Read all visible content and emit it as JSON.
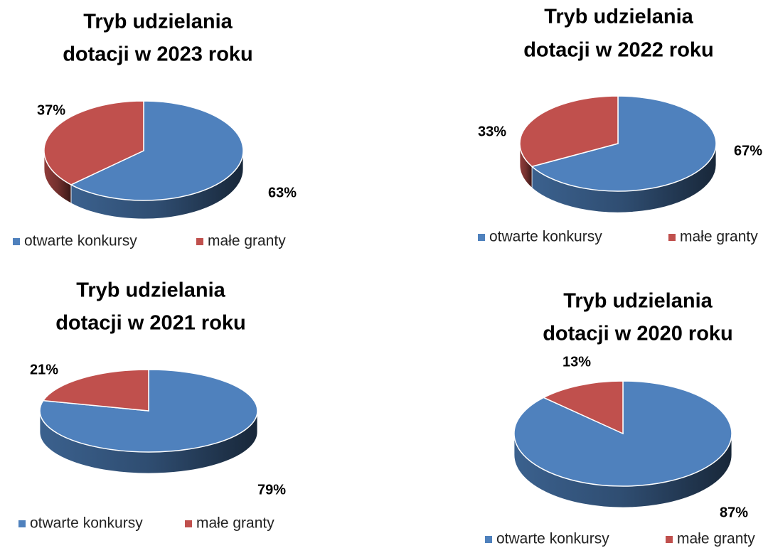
{
  "chart_data": [
    {
      "type": "pie",
      "title": [
        "Tryb udzielania",
        "dotacji w 2023 roku"
      ],
      "categories": [
        "otwarte konkursy",
        "małe granty"
      ],
      "values": [
        63,
        37
      ],
      "value_labels": [
        "63%",
        "37%"
      ],
      "colors": [
        "#4f81bd",
        "#c0504d"
      ]
    },
    {
      "type": "pie",
      "title": [
        "Tryb udzielania",
        "dotacji w 2022 roku"
      ],
      "categories": [
        "otwarte konkursy",
        "małe granty"
      ],
      "values": [
        67,
        33
      ],
      "value_labels": [
        "67%",
        "33%"
      ],
      "colors": [
        "#4f81bd",
        "#c0504d"
      ]
    },
    {
      "type": "pie",
      "title": [
        "Tryb udzielania",
        "dotacji w 2021 roku"
      ],
      "categories": [
        "otwarte konkursy",
        "małe granty"
      ],
      "values": [
        79,
        21
      ],
      "value_labels": [
        "79%",
        "21%"
      ],
      "colors": [
        "#4f81bd",
        "#c0504d"
      ]
    },
    {
      "type": "pie",
      "title": [
        "Tryb udzielania",
        "dotacji w 2020 roku"
      ],
      "categories": [
        "otwarte konkursy",
        "małe granty"
      ],
      "values": [
        87,
        13
      ],
      "value_labels": [
        "87%",
        "13%"
      ],
      "colors": [
        "#4f81bd",
        "#c0504d"
      ]
    }
  ]
}
